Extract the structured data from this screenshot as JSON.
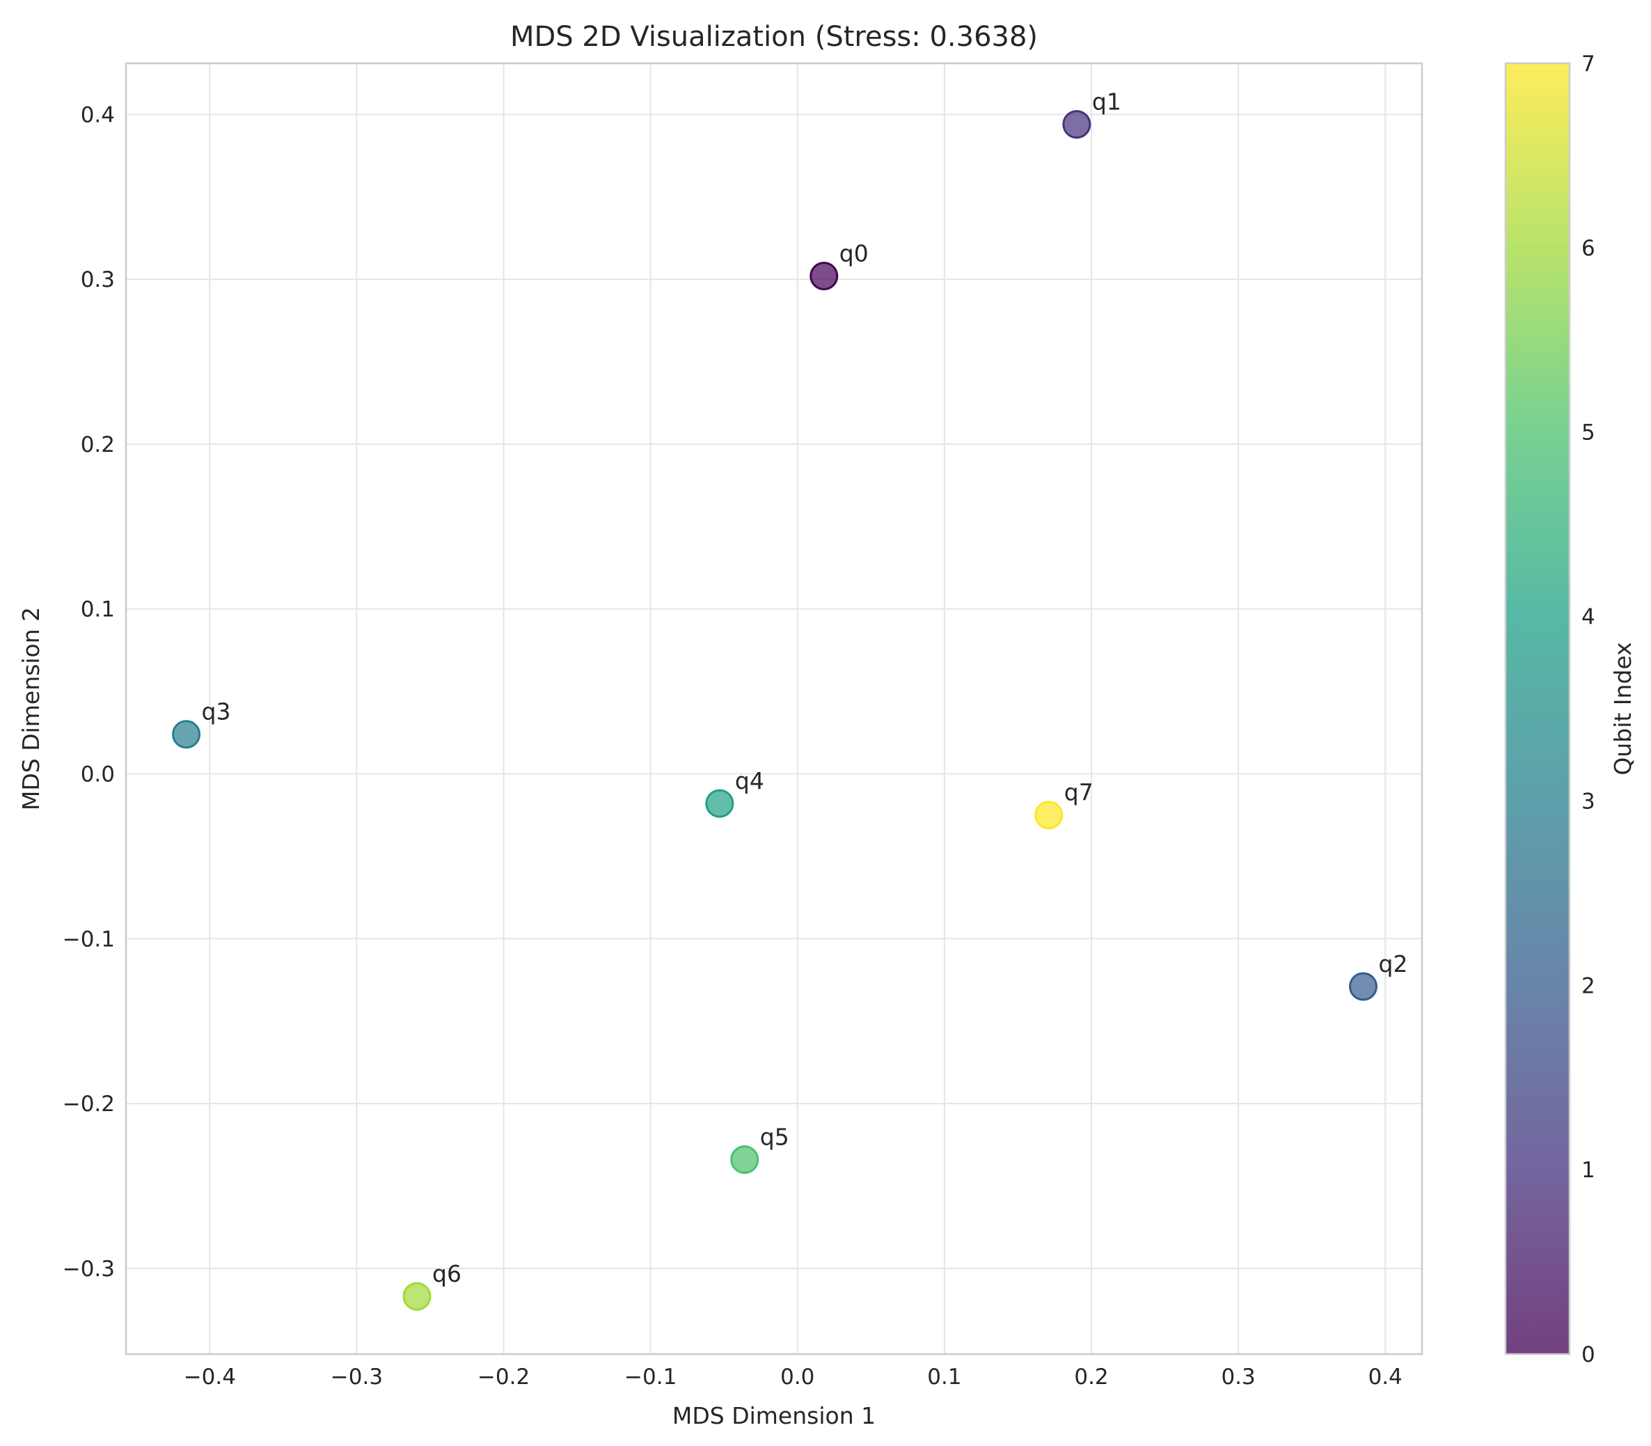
{
  "chart_data": {
    "type": "scatter",
    "title": "MDS 2D Visualization (Stress: 0.3638)",
    "xlabel": "MDS Dimension 1",
    "ylabel": "MDS Dimension 2",
    "xlim": [
      -0.457,
      0.425
    ],
    "ylim": [
      -0.352,
      0.431
    ],
    "xticks": [
      -0.4,
      -0.3,
      -0.2,
      -0.1,
      0.0,
      0.1,
      0.2,
      0.3,
      0.4
    ],
    "yticks": [
      -0.3,
      -0.2,
      -0.1,
      0.0,
      0.1,
      0.2,
      0.3,
      0.4
    ],
    "xtick_labels": [
      "−0.4",
      "−0.3",
      "−0.2",
      "−0.1",
      "0.0",
      "0.1",
      "0.2",
      "0.3",
      "0.4"
    ],
    "ytick_labels": [
      "−0.3",
      "−0.2",
      "−0.1",
      "0.0",
      "0.1",
      "0.2",
      "0.3",
      "0.4"
    ],
    "grid": true,
    "points": [
      {
        "label": "q0",
        "x": 0.018,
        "y": 0.302,
        "c": 0
      },
      {
        "label": "q1",
        "x": 0.19,
        "y": 0.394,
        "c": 1
      },
      {
        "label": "q2",
        "x": 0.385,
        "y": -0.129,
        "c": 2
      },
      {
        "label": "q3",
        "x": -0.416,
        "y": 0.024,
        "c": 3
      },
      {
        "label": "q4",
        "x": -0.053,
        "y": -0.018,
        "c": 4
      },
      {
        "label": "q5",
        "x": -0.036,
        "y": -0.234,
        "c": 5
      },
      {
        "label": "q6",
        "x": -0.259,
        "y": -0.317,
        "c": 6
      },
      {
        "label": "q7",
        "x": 0.171,
        "y": -0.025,
        "c": 7
      }
    ],
    "colormap": "viridis",
    "colors": [
      "#440154",
      "#46327e",
      "#365c8d",
      "#277f8e",
      "#1fa187",
      "#4ac16d",
      "#a0da39",
      "#fde725"
    ],
    "colorbar": {
      "label": "Qubit Index",
      "range": [
        0,
        7
      ],
      "ticks": [
        0,
        1,
        2,
        3,
        4,
        5,
        6,
        7
      ],
      "tick_labels": [
        "0",
        "1",
        "2",
        "3",
        "4",
        "5",
        "6",
        "7"
      ]
    }
  }
}
